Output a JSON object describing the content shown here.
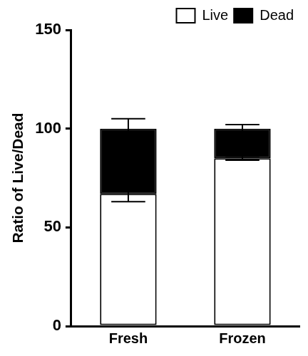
{
  "chart_data": {
    "type": "bar",
    "categories": [
      "Fresh",
      "Frozen"
    ],
    "y_label": "Ratio of Live/Dead",
    "series": [
      {
        "name": "Live",
        "color": "#ffffff",
        "values": [
          67,
          85
        ],
        "errors": [
          4,
          1
        ]
      },
      {
        "name": "Dead",
        "color": "#000000",
        "values": [
          33,
          15
        ],
        "errors": [
          5,
          2
        ]
      }
    ],
    "ylim": [
      0,
      150
    ],
    "yticks": [
      0,
      50,
      100,
      150
    ],
    "stacked": true,
    "grid": false,
    "legend": "top-right"
  }
}
